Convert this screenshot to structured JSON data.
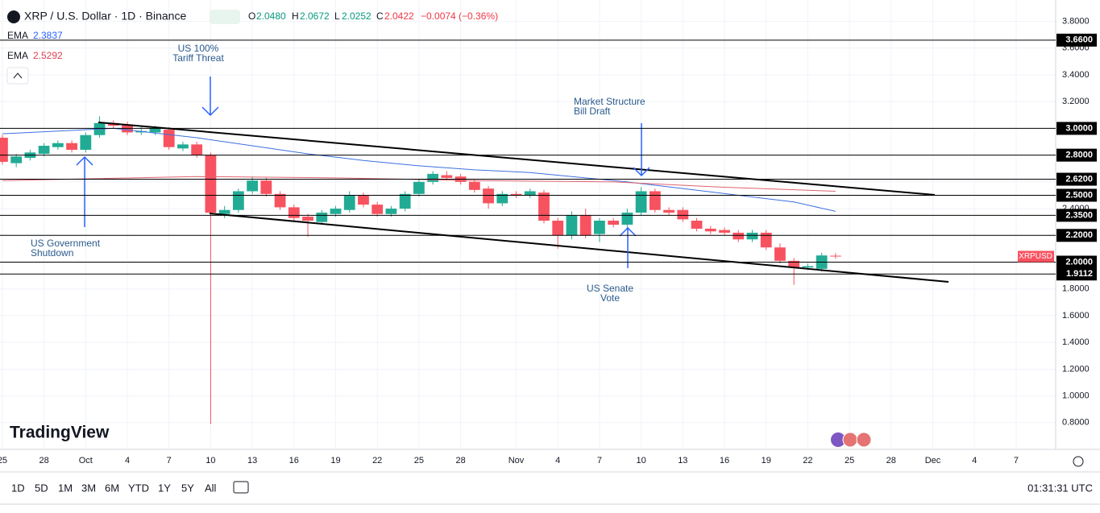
{
  "header": {
    "title": "XRP / U.S. Dollar · 1D · Binance",
    "o_label": "O",
    "open": "2.0480",
    "h_label": "H",
    "high": "2.0672",
    "l_label": "L",
    "low": "2.0252",
    "c_label": "C",
    "close": "2.0422",
    "change": "−0.0074 (−0.36%)"
  },
  "indicators": [
    {
      "name": "EMA",
      "value": "2.3837"
    },
    {
      "name": "EMA",
      "value": "2.5292"
    }
  ],
  "annotations": [
    {
      "lines": [
        "US 100%",
        "Tariff Threat"
      ]
    },
    {
      "lines": [
        "Market Structure",
        "Bill Draft"
      ]
    },
    {
      "lines": [
        "US Government",
        "Shutdown"
      ]
    },
    {
      "lines": [
        "US Senate",
        "Vote"
      ]
    }
  ],
  "symbol_tag": "XRPUSD",
  "logo": "TradingView",
  "toolbar": {
    "ranges": [
      "1D",
      "5D",
      "1M",
      "3M",
      "6M",
      "YTD",
      "1Y",
      "5Y",
      "All"
    ],
    "clock": "01:31:31 UTC"
  },
  "chart_data": {
    "type": "candlestick",
    "up_color": "#22ab94",
    "down_color": "#f7525f",
    "x": [
      0,
      1,
      2,
      3,
      4,
      5,
      6,
      7,
      8,
      9,
      10,
      11,
      12,
      13,
      14,
      15,
      16,
      17,
      18,
      19,
      20,
      21,
      22,
      23,
      24,
      25,
      26,
      27,
      28,
      29,
      30,
      31,
      32,
      33,
      34,
      35,
      36,
      37,
      38,
      39,
      40,
      41,
      42,
      43,
      44,
      45,
      46,
      47,
      48,
      49,
      50,
      51,
      52,
      53,
      54,
      55,
      56,
      57,
      58,
      59,
      60
    ],
    "open": [
      2.93,
      2.74,
      2.78,
      2.81,
      2.86,
      2.89,
      2.84,
      2.95,
      3.04,
      3.03,
      2.97,
      2.97,
      2.99,
      2.85,
      2.88,
      2.8,
      2.36,
      2.39,
      2.53,
      2.61,
      2.51,
      2.41,
      2.34,
      2.3,
      2.36,
      2.39,
      2.5,
      2.43,
      2.36,
      2.4,
      2.51,
      2.6,
      2.65,
      2.64,
      2.6,
      2.55,
      2.44,
      2.51,
      2.5,
      2.52,
      2.31,
      2.2,
      2.35,
      2.21,
      2.31,
      2.28,
      2.37,
      2.53,
      2.39,
      2.39,
      2.31,
      2.25,
      2.24,
      2.22,
      2.17,
      2.22,
      2.11,
      2.01,
      1.96,
      1.95,
      2.048
    ],
    "high": [
      2.95,
      2.81,
      2.84,
      2.89,
      2.91,
      2.91,
      2.97,
      3.09,
      3.06,
      3.05,
      3.01,
      3.02,
      3.01,
      2.9,
      2.9,
      2.82,
      2.42,
      2.55,
      2.64,
      2.63,
      2.53,
      2.43,
      2.36,
      2.39,
      2.42,
      2.53,
      2.52,
      2.45,
      2.42,
      2.53,
      2.62,
      2.68,
      2.68,
      2.66,
      2.62,
      2.57,
      2.53,
      2.53,
      2.55,
      2.54,
      2.33,
      2.38,
      2.4,
      2.33,
      2.33,
      2.4,
      2.56,
      2.55,
      2.41,
      2.41,
      2.33,
      2.27,
      2.26,
      2.24,
      2.24,
      2.24,
      2.14,
      2.03,
      1.99,
      2.07,
      2.0672
    ],
    "low": [
      2.73,
      2.71,
      2.76,
      2.79,
      2.84,
      2.82,
      2.82,
      2.93,
      3.0,
      2.95,
      2.95,
      2.95,
      2.84,
      2.83,
      2.78,
      0.79,
      2.33,
      2.37,
      2.51,
      2.49,
      2.39,
      2.31,
      2.19,
      2.28,
      2.34,
      2.37,
      2.41,
      2.34,
      2.34,
      2.38,
      2.49,
      2.58,
      2.61,
      2.58,
      2.52,
      2.4,
      2.42,
      2.48,
      2.48,
      2.29,
      2.1,
      2.17,
      2.18,
      2.15,
      2.26,
      2.24,
      2.35,
      2.37,
      2.35,
      2.3,
      2.23,
      2.21,
      2.2,
      2.15,
      2.15,
      2.09,
      1.99,
      1.83,
      1.94,
      1.93,
      2.0252
    ],
    "close": [
      2.75,
      2.79,
      2.82,
      2.87,
      2.89,
      2.84,
      2.95,
      3.04,
      3.02,
      2.97,
      2.98,
      3.0,
      2.86,
      2.88,
      2.8,
      2.37,
      2.39,
      2.53,
      2.61,
      2.51,
      2.41,
      2.33,
      2.31,
      2.37,
      2.4,
      2.5,
      2.43,
      2.36,
      2.4,
      2.51,
      2.6,
      2.66,
      2.63,
      2.6,
      2.54,
      2.44,
      2.51,
      2.5,
      2.53,
      2.31,
      2.2,
      2.35,
      2.2,
      2.31,
      2.28,
      2.37,
      2.53,
      2.39,
      2.37,
      2.32,
      2.25,
      2.23,
      2.22,
      2.17,
      2.22,
      2.11,
      2.01,
      1.96,
      1.97,
      2.05,
      2.0422
    ],
    "lines": [
      {
        "color": "#3d6fe0",
        "x": [
          0,
          8,
          14,
          18,
          22,
          26,
          30,
          34,
          38,
          41,
          45,
          49,
          53,
          57,
          60
        ],
        "values": [
          2.96,
          3.0,
          2.93,
          2.87,
          2.81,
          2.76,
          2.72,
          2.69,
          2.67,
          2.64,
          2.6,
          2.55,
          2.5,
          2.45,
          2.38
        ]
      },
      {
        "color": "#e0626e",
        "x": [
          0,
          14,
          24,
          34,
          44,
          52,
          60
        ],
        "values": [
          2.61,
          2.64,
          2.63,
          2.61,
          2.6,
          2.56,
          2.53
        ]
      }
    ],
    "levels": [
      {
        "value": 3.66,
        "label": "3.6600"
      },
      {
        "value": 3.0,
        "label": "3.0000"
      },
      {
        "value": 2.8,
        "label": "2.8000"
      },
      {
        "value": 2.62,
        "label": "2.6200"
      },
      {
        "value": 2.5,
        "label": "2.5000"
      },
      {
        "value": 2.35,
        "label": "2.3500"
      },
      {
        "value": 2.2,
        "label": "2.2000"
      },
      {
        "value": 2.0,
        "label": "2.0000"
      },
      {
        "value": 1.9112,
        "label": "1.9112"
      }
    ],
    "xlim": [
      -0.17,
      75.85
    ],
    "ylim": [
      0.6,
      3.96
    ],
    "xticks": [
      {
        "value": 0,
        "label": "25"
      },
      {
        "value": 3,
        "label": "28"
      },
      {
        "value": 6,
        "label": "Oct"
      },
      {
        "value": 9,
        "label": "4"
      },
      {
        "value": 12,
        "label": "7"
      },
      {
        "value": 15,
        "label": "10"
      },
      {
        "value": 18,
        "label": "13"
      },
      {
        "value": 21,
        "label": "16"
      },
      {
        "value": 24,
        "label": "19"
      },
      {
        "value": 27,
        "label": "22"
      },
      {
        "value": 30,
        "label": "25"
      },
      {
        "value": 33,
        "label": "28"
      },
      {
        "value": 37,
        "label": "Nov"
      },
      {
        "value": 40,
        "label": "4"
      },
      {
        "value": 43,
        "label": "7"
      },
      {
        "value": 46,
        "label": "10"
      },
      {
        "value": 49,
        "label": "13"
      },
      {
        "value": 52,
        "label": "16"
      },
      {
        "value": 55,
        "label": "19"
      },
      {
        "value": 58,
        "label": "22"
      },
      {
        "value": 61,
        "label": "25"
      },
      {
        "value": 64,
        "label": "28"
      },
      {
        "value": 67,
        "label": "Dec"
      },
      {
        "value": 70,
        "label": "4"
      },
      {
        "value": 73,
        "label": "7"
      }
    ],
    "yticks": [
      {
        "value": 0.8,
        "label": "0.8000"
      },
      {
        "value": 1.0,
        "label": "1.0000"
      },
      {
        "value": 1.2,
        "label": "1.2000"
      },
      {
        "value": 1.4,
        "label": "1.4000"
      },
      {
        "value": 1.6,
        "label": "1.6000"
      },
      {
        "value": 1.8,
        "label": "1.8000"
      },
      {
        "value": 2.0,
        "label": "2.0000"
      },
      {
        "value": 2.2,
        "label": "2.2000"
      },
      {
        "value": 2.4,
        "label": "2.4000"
      },
      {
        "value": 2.6,
        "label": "2.6000"
      },
      {
        "value": 2.8,
        "label": "2.8000"
      },
      {
        "value": 3.0,
        "label": "3.0000"
      },
      {
        "value": 3.2,
        "label": "3.2000"
      },
      {
        "value": 3.4,
        "label": "3.4000"
      },
      {
        "value": 3.6,
        "label": "3.6000"
      },
      {
        "value": 3.8,
        "label": "3.8000"
      }
    ]
  }
}
